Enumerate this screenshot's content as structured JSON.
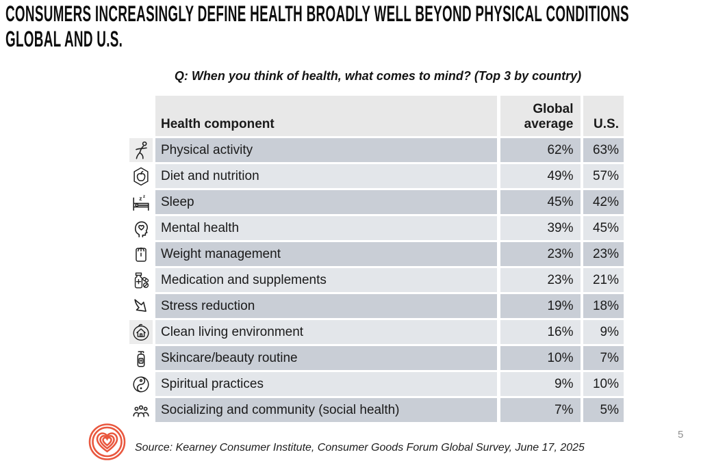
{
  "slide": {
    "title_line1": "CONSUMERS INCREASINGLY DEFINE HEALTH BROADLY WELL BEYOND PHYSICAL CONDITIONS",
    "title_line2": "GLOBAL AND U.S.",
    "question": "Q: When you think of health, what comes to mind? (Top 3 by country)",
    "source": "Source: Kearney Consumer Institute, Consumer Goods Forum Global Survey, June 17, 2025",
    "page_number": "5"
  },
  "table": {
    "headers": {
      "component": "Health component",
      "global": "Global average",
      "us": "U.S."
    },
    "rows": [
      {
        "icon": "dancing-person-icon",
        "label": "Physical activity",
        "global": "62%",
        "us": "63%"
      },
      {
        "icon": "apple-nutrition-icon",
        "label": "Diet and nutrition",
        "global": "49%",
        "us": "57%"
      },
      {
        "icon": "bed-sleep-icon",
        "label": "Sleep",
        "global": "45%",
        "us": "42%"
      },
      {
        "icon": "head-heart-icon",
        "label": "Mental health",
        "global": "39%",
        "us": "45%"
      },
      {
        "icon": "weight-scale-icon",
        "label": "Weight management",
        "global": "23%",
        "us": "23%"
      },
      {
        "icon": "medicine-bottle-icon",
        "label": "Medication and supplements",
        "global": "23%",
        "us": "21%"
      },
      {
        "icon": "arrow-down-right-icon",
        "label": "Stress reduction",
        "global": "19%",
        "us": "18%"
      },
      {
        "icon": "house-circle-icon",
        "label": "Clean living environment",
        "global": "16%",
        "us": "9%"
      },
      {
        "icon": "lotion-bottle-icon",
        "label": "Skincare/beauty routine",
        "global": "10%",
        "us": "7%"
      },
      {
        "icon": "yin-yang-icon",
        "label": "Spiritual practices",
        "global": "9%",
        "us": "10%"
      },
      {
        "icon": "people-group-icon",
        "label": "Socializing and community (social health)",
        "global": "7%",
        "us": "5%"
      }
    ]
  },
  "chart_data": {
    "type": "table",
    "title": "Q: When you think of health, what comes to mind? (Top 3 by country)",
    "categories": [
      "Physical activity",
      "Diet and nutrition",
      "Sleep",
      "Mental health",
      "Weight management",
      "Medication and supplements",
      "Stress reduction",
      "Clean living environment",
      "Skincare/beauty routine",
      "Spiritual practices",
      "Socializing and community (social health)"
    ],
    "series": [
      {
        "name": "Global average",
        "values": [
          62,
          49,
          45,
          39,
          23,
          23,
          19,
          16,
          10,
          9,
          7
        ]
      },
      {
        "name": "U.S.",
        "values": [
          63,
          57,
          42,
          45,
          23,
          21,
          18,
          9,
          7,
          10,
          5
        ]
      }
    ],
    "unit": "%"
  },
  "colors": {
    "row_dark": "#c9ced6",
    "row_light": "#e3e6ea",
    "header_bg": "#e8e8e8",
    "logo_red": "#e9573e",
    "page_number_gray": "#8f8f8f"
  },
  "logo": {
    "name": "kearney-consumer-institute-logo"
  }
}
